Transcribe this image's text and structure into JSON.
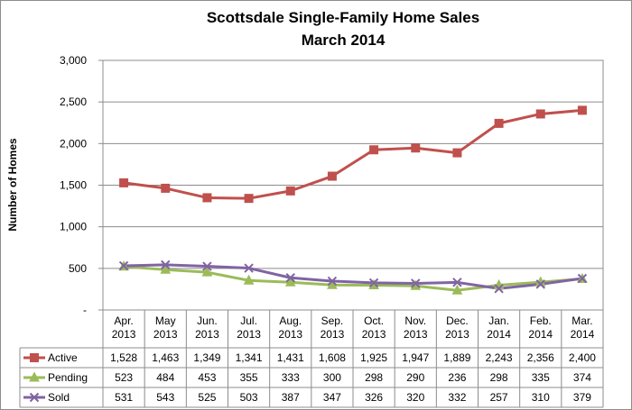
{
  "chart_data": {
    "type": "line",
    "title": "Scottsdale Single-Family Home Sales",
    "subtitle": "March 2014",
    "ylabel": "Number of Homes",
    "xlabel": "",
    "ylim": [
      0,
      3000
    ],
    "yticks": [
      {
        "value": 0,
        "label": "-"
      },
      {
        "value": 500,
        "label": "500"
      },
      {
        "value": 1000,
        "label": "1,000"
      },
      {
        "value": 1500,
        "label": "1,500"
      },
      {
        "value": 2000,
        "label": "2,000"
      },
      {
        "value": 2500,
        "label": "2,500"
      },
      {
        "value": 3000,
        "label": "3,000"
      }
    ],
    "grid": true,
    "legend": "data table below chart",
    "categories": [
      [
        "Apr.",
        "2013"
      ],
      [
        "May",
        "2013"
      ],
      [
        "Jun.",
        "2013"
      ],
      [
        "Jul.",
        "2013"
      ],
      [
        "Aug.",
        "2013"
      ],
      [
        "Sep.",
        "2013"
      ],
      [
        "Oct.",
        "2013"
      ],
      [
        "Nov.",
        "2013"
      ],
      [
        "Dec.",
        "2013"
      ],
      [
        "Jan.",
        "2014"
      ],
      [
        "Feb.",
        "2014"
      ],
      [
        "Mar.",
        "2014"
      ]
    ],
    "series": [
      {
        "name": "Active",
        "color": "#c0504d",
        "marker": "square",
        "values": [
          1528,
          1463,
          1349,
          1341,
          1431,
          1608,
          1925,
          1947,
          1889,
          2243,
          2356,
          2400
        ],
        "labels": [
          "1,528",
          "1,463",
          "1,349",
          "1,341",
          "1,431",
          "1,608",
          "1,925",
          "1,947",
          "1,889",
          "2,243",
          "2,356",
          "2,400"
        ]
      },
      {
        "name": "Pending",
        "color": "#9bbb59",
        "marker": "triangle",
        "values": [
          523,
          484,
          453,
          355,
          333,
          300,
          298,
          290,
          236,
          298,
          335,
          374
        ],
        "labels": [
          "523",
          "484",
          "453",
          "355",
          "333",
          "300",
          "298",
          "290",
          "236",
          "298",
          "335",
          "374"
        ]
      },
      {
        "name": "Sold",
        "color": "#8064a2",
        "marker": "x",
        "values": [
          531,
          543,
          525,
          503,
          387,
          347,
          326,
          320,
          332,
          257,
          310,
          379
        ],
        "labels": [
          "531",
          "543",
          "525",
          "503",
          "387",
          "347",
          "326",
          "320",
          "332",
          "257",
          "310",
          "379"
        ]
      }
    ]
  }
}
